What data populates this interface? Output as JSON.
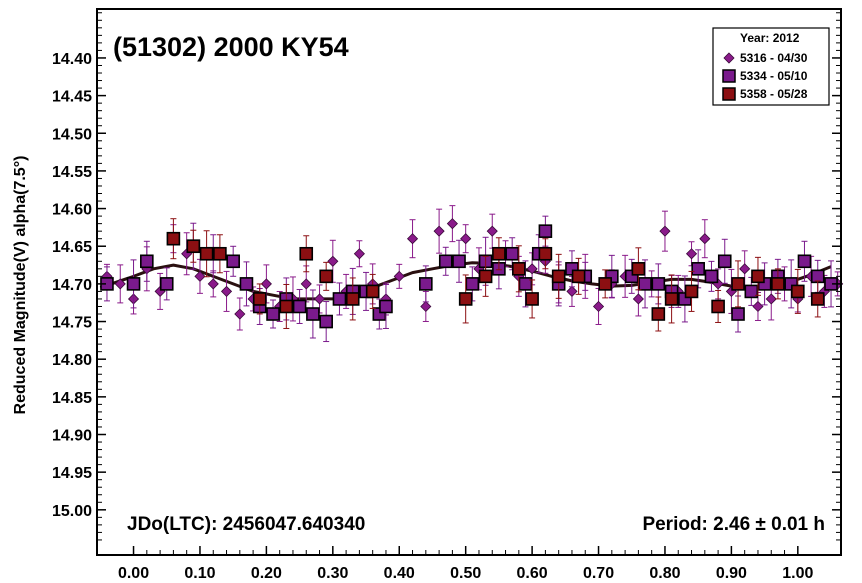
{
  "chart_data": {
    "type": "scatter",
    "title": "(51302) 2000 KY54",
    "ylabel": "Reduced Magnitude(V) alpha(7.5°)",
    "xlabel": "",
    "xlim": [
      -0.055,
      1.065
    ],
    "ylim": [
      15.06,
      14.335
    ],
    "y_inverted": true,
    "x_ticks": [
      "0.00",
      "0.10",
      "0.20",
      "0.30",
      "0.40",
      "0.50",
      "0.60",
      "0.70",
      "0.80",
      "0.90",
      "1.00"
    ],
    "y_ticks": [
      "14.40",
      "14.45",
      "14.50",
      "14.55",
      "14.60",
      "14.65",
      "14.70",
      "14.75",
      "14.80",
      "14.85",
      "14.90",
      "14.95",
      "15.00"
    ],
    "legend": {
      "title": "Year: 2012",
      "position": "top-right",
      "entries": [
        {
          "label": "5316 - 04/30",
          "marker": "diamond",
          "color": "#8a1a8a"
        },
        {
          "label": "5334 - 05/10",
          "marker": "square",
          "color": "#7a1a8c"
        },
        {
          "label": "5358 - 05/28",
          "marker": "square",
          "color": "#8c0f12"
        }
      ]
    },
    "annotations": {
      "epoch": "JDo(LTC): 2456047.640340",
      "period": "Period: 2.46 ± 0.01 h"
    },
    "series": [
      {
        "name": "5316 - 04/30",
        "marker": "diamond",
        "color": "#8a1a8a",
        "x": [
          -0.04,
          -0.02,
          0.0,
          0.02,
          0.04,
          0.06,
          0.08,
          0.1,
          0.12,
          0.14,
          0.16,
          0.18,
          0.2,
          0.22,
          0.24,
          0.26,
          0.28,
          0.3,
          0.32,
          0.34,
          0.36,
          0.38,
          0.4,
          0.42,
          0.44,
          0.46,
          0.48,
          0.5,
          0.52,
          0.54,
          0.56,
          0.58,
          0.6,
          0.62,
          0.64,
          0.66,
          0.68,
          0.7,
          0.72,
          0.74,
          0.76,
          0.78,
          0.8,
          0.82,
          0.84,
          0.86,
          0.88,
          0.9,
          0.92,
          0.94,
          0.96,
          0.98,
          1.0,
          1.02,
          1.04,
          1.06
        ],
        "y": [
          14.69,
          14.7,
          14.72,
          14.68,
          14.71,
          14.64,
          14.66,
          14.69,
          14.7,
          14.71,
          14.74,
          14.72,
          14.7,
          14.73,
          14.72,
          14.7,
          14.72,
          14.67,
          14.71,
          14.66,
          14.7,
          14.72,
          14.69,
          14.64,
          14.73,
          14.63,
          14.62,
          14.64,
          14.68,
          14.63,
          14.66,
          14.69,
          14.68,
          14.67,
          14.7,
          14.71,
          14.69,
          14.73,
          14.7,
          14.69,
          14.72,
          14.7,
          14.63,
          14.71,
          14.66,
          14.64,
          14.7,
          14.71,
          14.68,
          14.73,
          14.72,
          14.7,
          14.72,
          14.69,
          14.71,
          14.7
        ]
      },
      {
        "name": "5334 - 05/10",
        "marker": "square",
        "color": "#7a1a8c",
        "x": [
          -0.04,
          0.0,
          0.02,
          0.05,
          0.09,
          0.12,
          0.15,
          0.17,
          0.19,
          0.21,
          0.23,
          0.25,
          0.27,
          0.29,
          0.31,
          0.33,
          0.35,
          0.37,
          0.38,
          0.44,
          0.47,
          0.49,
          0.51,
          0.53,
          0.55,
          0.57,
          0.59,
          0.61,
          0.62,
          0.64,
          0.66,
          0.68,
          0.72,
          0.75,
          0.77,
          0.79,
          0.81,
          0.83,
          0.85,
          0.87,
          0.89,
          0.91,
          0.93,
          0.95,
          0.97,
          0.99,
          1.01,
          1.03,
          1.05
        ],
        "y": [
          14.7,
          14.7,
          14.67,
          14.7,
          14.65,
          14.66,
          14.67,
          14.7,
          14.73,
          14.74,
          14.72,
          14.73,
          14.74,
          14.75,
          14.72,
          14.71,
          14.71,
          14.74,
          14.73,
          14.7,
          14.67,
          14.67,
          14.7,
          14.67,
          14.68,
          14.66,
          14.7,
          14.66,
          14.63,
          14.7,
          14.68,
          14.69,
          14.69,
          14.69,
          14.7,
          14.7,
          14.71,
          14.72,
          14.68,
          14.69,
          14.67,
          14.74,
          14.71,
          14.7,
          14.69,
          14.7,
          14.67,
          14.69,
          14.7
        ]
      },
      {
        "name": "5358 - 05/28",
        "marker": "square",
        "color": "#8c0f12",
        "x": [
          0.06,
          0.09,
          0.11,
          0.13,
          0.19,
          0.23,
          0.26,
          0.29,
          0.33,
          0.36,
          0.5,
          0.53,
          0.55,
          0.58,
          0.6,
          0.62,
          0.64,
          0.67,
          0.71,
          0.76,
          0.79,
          0.81,
          0.84,
          0.88,
          0.91,
          0.94,
          0.97,
          1.0,
          1.03
        ],
        "y": [
          14.64,
          14.65,
          14.66,
          14.66,
          14.72,
          14.73,
          14.66,
          14.69,
          14.72,
          14.71,
          14.72,
          14.69,
          14.66,
          14.68,
          14.72,
          14.66,
          14.69,
          14.69,
          14.7,
          14.68,
          14.74,
          14.72,
          14.71,
          14.73,
          14.7,
          14.69,
          14.7,
          14.71,
          14.72
        ]
      }
    ],
    "fit_curve": {
      "x": [
        -0.05,
        0.0,
        0.03,
        0.06,
        0.09,
        0.12,
        0.15,
        0.18,
        0.21,
        0.24,
        0.27,
        0.3,
        0.33,
        0.36,
        0.39,
        0.42,
        0.45,
        0.48,
        0.51,
        0.54,
        0.57,
        0.6,
        0.63,
        0.66,
        0.69,
        0.72,
        0.75,
        0.78,
        0.81,
        0.84,
        0.87,
        0.9,
        0.93,
        0.96,
        0.99,
        1.02,
        1.05
      ],
      "y": [
        14.705,
        14.69,
        14.68,
        14.675,
        14.68,
        14.69,
        14.7,
        14.71,
        14.715,
        14.72,
        14.72,
        14.72,
        14.715,
        14.705,
        14.695,
        14.685,
        14.68,
        14.675,
        14.672,
        14.673,
        14.677,
        14.683,
        14.69,
        14.696,
        14.7,
        14.703,
        14.702,
        14.698,
        14.694,
        14.694,
        14.698,
        14.703,
        14.706,
        14.704,
        14.697,
        14.688,
        14.677
      ],
      "color": "#2a1010"
    }
  }
}
